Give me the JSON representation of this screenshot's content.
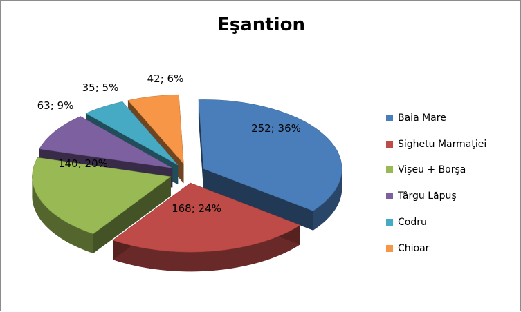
{
  "chart_data": {
    "type": "pie",
    "title": "Eşantion",
    "legend_position": "right",
    "slices": [
      {
        "label": "Baia Mare",
        "value": 252,
        "percent": 36,
        "data_label": "252; 36%",
        "color": "#4a7ebb"
      },
      {
        "label": "Sighetu Marmaţiei",
        "value": 168,
        "percent": 24,
        "data_label": "168; 24%",
        "color": "#be4b48"
      },
      {
        "label": "Vişeu + Borşa",
        "value": 140,
        "percent": 20,
        "data_label": "140; 20%",
        "color": "#98b954"
      },
      {
        "label": "Târgu Lăpuş",
        "value": 63,
        "percent": 9,
        "data_label": "63; 9%",
        "color": "#7d60a0"
      },
      {
        "label": "Codru",
        "value": 35,
        "percent": 5,
        "data_label": "35; 5%",
        "color": "#46aac5"
      },
      {
        "label": "Chioar",
        "value": 42,
        "percent": 6,
        "data_label": "42; 6%",
        "color": "#f79646"
      }
    ]
  }
}
